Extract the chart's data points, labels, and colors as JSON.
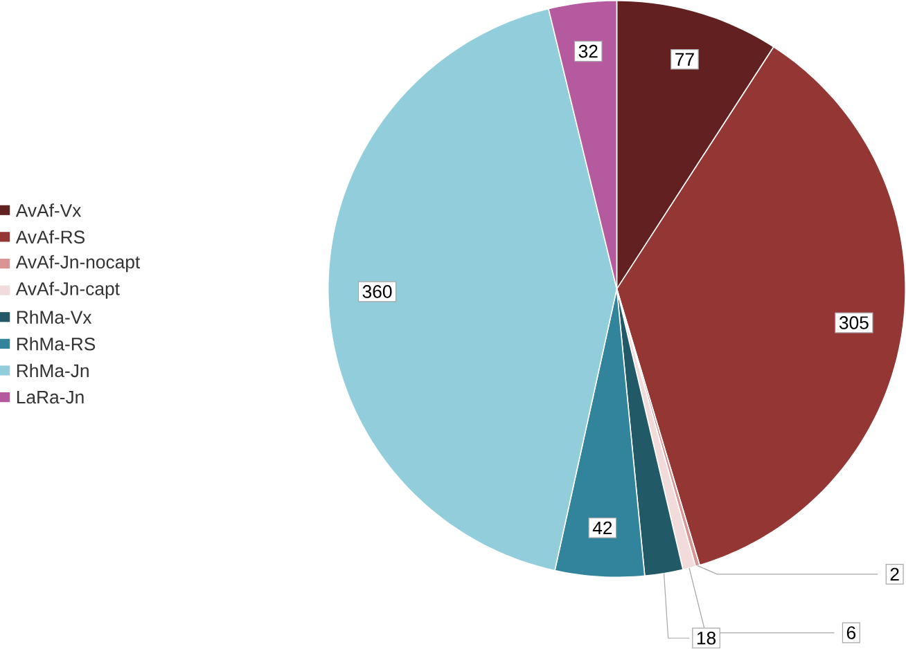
{
  "chart_data": {
    "type": "pie",
    "categories": [
      "AvAf-Vx",
      "AvAf-RS",
      "AvAf-Jn-nocapt",
      "AvAf-Jn-capt",
      "RhMa-Vx",
      "RhMa-RS",
      "RhMa-Jn",
      "LaRa-Jn"
    ],
    "values": [
      77,
      305,
      2,
      6,
      18,
      42,
      360,
      32
    ],
    "colors": [
      "#622020",
      "#943634",
      "#d99594",
      "#f2dcdb",
      "#215967",
      "#31849b",
      "#92cddc",
      "#b65aa0"
    ],
    "data_labels": true,
    "legend": "left"
  }
}
